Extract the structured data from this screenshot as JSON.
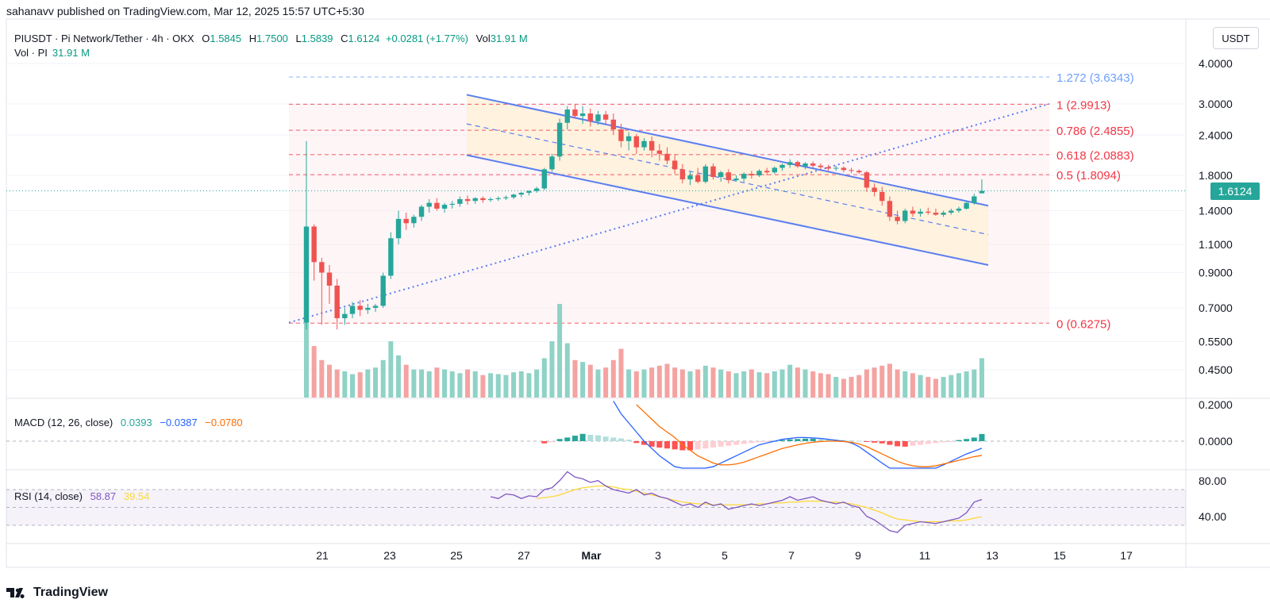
{
  "header": {
    "published": "sahanavv published on TradingView.com, Mar 12, 2025 15:57 UTC+5:30"
  },
  "legend": {
    "symbol": "PIUSDT · Pi Network/Tether · 4h · OKX",
    "o_label": "O",
    "o_value": "1.5845",
    "h_label": "H",
    "h_value": "1.7500",
    "l_label": "L",
    "l_value": "1.5839",
    "c_label": "C",
    "c_value": "1.6124",
    "change": "+0.0281 (+1.77%)",
    "vol_label": "Vol",
    "vol_value": "31.91 M",
    "vol_series_label": "Vol · PI",
    "vol_series_value": "31.91 M"
  },
  "currency_button": "USDT",
  "last_price_tag": "1.6124",
  "macd_legend": {
    "title": "MACD (12, 26, close)",
    "hist": "0.0393",
    "macd": "−0.0387",
    "signal": "−0.0780"
  },
  "rsi_legend": {
    "title": "RSI (14, close)",
    "rsi": "58.87",
    "ma": "39.54"
  },
  "footer": {
    "brand": "TradingView"
  },
  "colors": {
    "up": "#26a69a",
    "down": "#ef5350",
    "fib": "#f23645",
    "fib_ext": "#2962ff",
    "channel": "#5b7ef0",
    "macd_line": "#2962ff",
    "signal_line": "#ff6d00",
    "rsi_line": "#7e57c2",
    "rsi_ma": "#fdd835"
  },
  "chart_data": {
    "type": "candlestick",
    "y_scale": "log",
    "price_ticks": [
      "4.0000",
      "3.0000",
      "2.4000",
      "1.8000",
      "1.4000",
      "1.1000",
      "0.9000",
      "0.7000",
      "0.5500",
      "0.4500"
    ],
    "x_ticks": [
      "21",
      "23",
      "25",
      "27",
      "Mar",
      "3",
      "5",
      "7",
      "9",
      "11",
      "13",
      "15",
      "17"
    ],
    "macd_ticks": [
      "0.2000",
      "0.0000"
    ],
    "rsi_ticks": [
      "80.00",
      "40.00"
    ],
    "fib_levels": [
      {
        "label": "1.272 (3.6343)",
        "value": 3.6343,
        "extension": true
      },
      {
        "label": "1 (2.9913)",
        "value": 2.9913
      },
      {
        "label": "0.786 (2.4855)",
        "value": 2.4855
      },
      {
        "label": "0.618 (2.0883)",
        "value": 2.0883
      },
      {
        "label": "0.5 (1.8094)",
        "value": 1.8094
      },
      {
        "label": "0 (0.6275)",
        "value": 0.6275
      }
    ],
    "last_close": 1.6124,
    "candles": [
      [
        0.63,
        2.3,
        0.6,
        1.25
      ],
      [
        1.25,
        1.27,
        0.85,
        0.97
      ],
      [
        0.97,
        1.0,
        0.62,
        0.9
      ],
      [
        0.9,
        0.95,
        0.72,
        0.82
      ],
      [
        0.82,
        0.86,
        0.6,
        0.65
      ],
      [
        0.65,
        0.7,
        0.62,
        0.67
      ],
      [
        0.67,
        0.73,
        0.65,
        0.71
      ],
      [
        0.71,
        0.74,
        0.66,
        0.69
      ],
      [
        0.69,
        0.72,
        0.67,
        0.7
      ],
      [
        0.7,
        0.72,
        0.68,
        0.71
      ],
      [
        0.71,
        0.9,
        0.7,
        0.88
      ],
      [
        0.88,
        1.2,
        0.86,
        1.15
      ],
      [
        1.15,
        1.4,
        1.1,
        1.32
      ],
      [
        1.32,
        1.38,
        1.22,
        1.28
      ],
      [
        1.28,
        1.36,
        1.24,
        1.34
      ],
      [
        1.34,
        1.46,
        1.3,
        1.44
      ],
      [
        1.44,
        1.52,
        1.38,
        1.48
      ],
      [
        1.48,
        1.53,
        1.4,
        1.42
      ],
      [
        1.42,
        1.48,
        1.38,
        1.46
      ],
      [
        1.46,
        1.5,
        1.42,
        1.47
      ],
      [
        1.47,
        1.55,
        1.44,
        1.52
      ],
      [
        1.52,
        1.56,
        1.46,
        1.5
      ],
      [
        1.5,
        1.54,
        1.47,
        1.53
      ],
      [
        1.53,
        1.55,
        1.48,
        1.51
      ],
      [
        1.51,
        1.54,
        1.49,
        1.52
      ],
      [
        1.52,
        1.55,
        1.5,
        1.53
      ],
      [
        1.53,
        1.56,
        1.51,
        1.54
      ],
      [
        1.54,
        1.58,
        1.52,
        1.57
      ],
      [
        1.57,
        1.6,
        1.54,
        1.59
      ],
      [
        1.59,
        1.62,
        1.56,
        1.61
      ],
      [
        1.61,
        1.66,
        1.59,
        1.64
      ],
      [
        1.64,
        1.9,
        1.62,
        1.88
      ],
      [
        1.88,
        2.1,
        1.85,
        2.06
      ],
      [
        2.06,
        2.7,
        2.0,
        2.62
      ],
      [
        2.62,
        2.95,
        2.5,
        2.88
      ],
      [
        2.88,
        2.99,
        2.7,
        2.75
      ],
      [
        2.75,
        2.95,
        2.6,
        2.8
      ],
      [
        2.8,
        2.9,
        2.55,
        2.65
      ],
      [
        2.65,
        2.85,
        2.58,
        2.78
      ],
      [
        2.78,
        2.85,
        2.6,
        2.68
      ],
      [
        2.68,
        2.8,
        2.4,
        2.5
      ],
      [
        2.5,
        2.6,
        2.2,
        2.3
      ],
      [
        2.3,
        2.45,
        2.15,
        2.38
      ],
      [
        2.38,
        2.42,
        2.1,
        2.2
      ],
      [
        2.2,
        2.35,
        2.15,
        2.3
      ],
      [
        2.3,
        2.38,
        2.05,
        2.15
      ],
      [
        2.15,
        2.25,
        2.0,
        2.1
      ],
      [
        2.1,
        2.2,
        1.95,
        2.0
      ],
      [
        2.0,
        2.1,
        1.82,
        1.88
      ],
      [
        1.88,
        1.95,
        1.7,
        1.75
      ],
      [
        1.75,
        1.85,
        1.68,
        1.8
      ],
      [
        1.8,
        1.9,
        1.7,
        1.72
      ],
      [
        1.72,
        1.95,
        1.7,
        1.92
      ],
      [
        1.92,
        1.96,
        1.75,
        1.78
      ],
      [
        1.78,
        1.86,
        1.72,
        1.84
      ],
      [
        1.84,
        1.88,
        1.7,
        1.74
      ],
      [
        1.74,
        1.8,
        1.72,
        1.76
      ],
      [
        1.76,
        1.84,
        1.72,
        1.82
      ],
      [
        1.82,
        1.86,
        1.76,
        1.8
      ],
      [
        1.8,
        1.88,
        1.78,
        1.86
      ],
      [
        1.86,
        1.9,
        1.8,
        1.84
      ],
      [
        1.84,
        1.92,
        1.82,
        1.9
      ],
      [
        1.9,
        1.96,
        1.86,
        1.94
      ],
      [
        1.94,
        2.02,
        1.9,
        1.98
      ],
      [
        1.98,
        2.0,
        1.9,
        1.92
      ],
      [
        1.92,
        1.98,
        1.88,
        1.96
      ],
      [
        1.96,
        1.99,
        1.9,
        1.93
      ],
      [
        1.93,
        1.96,
        1.88,
        1.91
      ],
      [
        1.91,
        1.94,
        1.86,
        1.89
      ],
      [
        1.89,
        1.93,
        1.86,
        1.9
      ],
      [
        1.9,
        1.92,
        1.84,
        1.87
      ],
      [
        1.87,
        1.9,
        1.83,
        1.86
      ],
      [
        1.86,
        1.88,
        1.82,
        1.84
      ],
      [
        1.84,
        1.86,
        1.6,
        1.65
      ],
      [
        1.65,
        1.7,
        1.55,
        1.6
      ],
      [
        1.6,
        1.66,
        1.45,
        1.5
      ],
      [
        1.5,
        1.55,
        1.3,
        1.34
      ],
      [
        1.34,
        1.4,
        1.27,
        1.3
      ],
      [
        1.3,
        1.42,
        1.28,
        1.4
      ],
      [
        1.4,
        1.44,
        1.34,
        1.37
      ],
      [
        1.37,
        1.42,
        1.34,
        1.39
      ],
      [
        1.39,
        1.43,
        1.36,
        1.38
      ],
      [
        1.38,
        1.42,
        1.35,
        1.36
      ],
      [
        1.36,
        1.4,
        1.34,
        1.38
      ],
      [
        1.38,
        1.42,
        1.36,
        1.4
      ],
      [
        1.4,
        1.44,
        1.38,
        1.42
      ],
      [
        1.42,
        1.5,
        1.41,
        1.48
      ],
      [
        1.48,
        1.58,
        1.46,
        1.55
      ],
      [
        1.5845,
        1.75,
        1.5839,
        1.6124
      ]
    ],
    "volume": [
      100,
      55,
      40,
      35,
      30,
      28,
      25,
      27,
      30,
      32,
      40,
      60,
      45,
      35,
      30,
      30,
      28,
      32,
      30,
      28,
      26,
      30,
      28,
      24,
      26,
      25,
      24,
      27,
      28,
      26,
      30,
      42,
      60,
      100,
      58,
      40,
      38,
      35,
      30,
      32,
      40,
      52,
      30,
      28,
      30,
      32,
      34,
      36,
      32,
      30,
      28,
      30,
      34,
      32,
      30,
      28,
      26,
      28,
      30,
      27,
      26,
      28,
      30,
      35,
      32,
      30,
      28,
      26,
      25,
      22,
      20,
      22,
      24,
      30,
      32,
      34,
      36,
      30,
      28,
      26,
      24,
      22,
      20,
      22,
      24,
      26,
      28,
      30,
      42
    ],
    "macd_hist": [
      null,
      null,
      null,
      null,
      null,
      null,
      null,
      null,
      null,
      null,
      null,
      null,
      null,
      null,
      null,
      null,
      null,
      null,
      null,
      null,
      null,
      null,
      null,
      null,
      null,
      null,
      null,
      null,
      null,
      null,
      null,
      -0.012,
      -0.006,
      0.012,
      0.02,
      0.03,
      0.04,
      0.035,
      0.032,
      0.025,
      0.02,
      0.015,
      0.008,
      -0.01,
      -0.02,
      -0.03,
      -0.035,
      -0.04,
      -0.045,
      -0.05,
      -0.05,
      -0.045,
      -0.04,
      -0.035,
      -0.03,
      -0.025,
      -0.02,
      -0.015,
      -0.01,
      -0.006,
      -0.002,
      0.002,
      0.006,
      0.01,
      0.012,
      0.014,
      0.014,
      0.012,
      0.01,
      0.008,
      0.006,
      0.004,
      0.002,
      -0.004,
      -0.008,
      -0.012,
      -0.02,
      -0.028,
      -0.03,
      -0.025,
      -0.02,
      -0.015,
      -0.01,
      -0.006,
      -0.002,
      0.006,
      0.012,
      0.02,
      0.0393
    ],
    "macd_line": [
      null,
      null,
      null,
      null,
      null,
      null,
      null,
      null,
      null,
      null,
      null,
      null,
      null,
      null,
      null,
      null,
      null,
      null,
      null,
      null,
      null,
      null,
      null,
      null,
      null,
      null,
      null,
      null,
      null,
      null,
      null,
      null,
      null,
      null,
      null,
      null,
      null,
      null,
      null,
      null,
      0.22,
      0.15,
      0.1,
      0.05,
      0.0,
      -0.04,
      -0.08,
      -0.11,
      -0.14,
      -0.16,
      -0.17,
      -0.17,
      -0.16,
      -0.14,
      -0.12,
      -0.1,
      -0.08,
      -0.06,
      -0.04,
      -0.02,
      -0.01,
      0.0,
      0.01,
      0.015,
      0.02,
      0.02,
      0.018,
      0.015,
      0.01,
      0.005,
      0.0,
      -0.01,
      -0.03,
      -0.06,
      -0.09,
      -0.12,
      -0.15,
      -0.17,
      -0.18,
      -0.18,
      -0.17,
      -0.16,
      -0.15,
      -0.13,
      -0.11,
      -0.09,
      -0.07,
      -0.055,
      -0.0387
    ],
    "signal_line": [
      null,
      null,
      null,
      null,
      null,
      null,
      null,
      null,
      null,
      null,
      null,
      null,
      null,
      null,
      null,
      null,
      null,
      null,
      null,
      null,
      null,
      null,
      null,
      null,
      null,
      null,
      null,
      null,
      null,
      null,
      null,
      null,
      null,
      null,
      null,
      null,
      null,
      null,
      null,
      null,
      null,
      null,
      null,
      0.2,
      0.16,
      0.12,
      0.08,
      0.05,
      0.02,
      -0.02,
      -0.05,
      -0.08,
      -0.1,
      -0.12,
      -0.13,
      -0.13,
      -0.125,
      -0.115,
      -0.1,
      -0.085,
      -0.07,
      -0.055,
      -0.04,
      -0.03,
      -0.02,
      -0.012,
      -0.006,
      -0.002,
      0.0,
      0.0,
      -0.002,
      -0.006,
      -0.015,
      -0.03,
      -0.05,
      -0.07,
      -0.09,
      -0.11,
      -0.125,
      -0.135,
      -0.14,
      -0.14,
      -0.135,
      -0.125,
      -0.115,
      -0.105,
      -0.095,
      -0.085,
      -0.078
    ],
    "rsi": [
      null,
      null,
      null,
      null,
      null,
      null,
      null,
      null,
      null,
      null,
      null,
      null,
      null,
      null,
      null,
      null,
      null,
      null,
      null,
      null,
      null,
      null,
      null,
      null,
      62,
      60,
      65,
      64,
      60,
      63,
      62,
      70,
      72,
      80,
      90,
      84,
      82,
      78,
      80,
      74,
      70,
      68,
      66,
      70,
      64,
      66,
      62,
      60,
      56,
      52,
      54,
      50,
      56,
      52,
      54,
      48,
      50,
      52,
      54,
      52,
      54,
      56,
      58,
      62,
      58,
      60,
      62,
      58,
      56,
      54,
      56,
      52,
      50,
      40,
      36,
      30,
      24,
      22,
      30,
      32,
      34,
      33,
      32,
      34,
      36,
      38,
      44,
      56,
      58.87
    ],
    "rsi_ma": [
      null,
      null,
      null,
      null,
      null,
      null,
      null,
      null,
      null,
      null,
      null,
      null,
      null,
      null,
      null,
      null,
      null,
      null,
      null,
      null,
      null,
      null,
      null,
      null,
      null,
      null,
      null,
      null,
      null,
      null,
      60,
      61,
      62,
      64,
      67,
      70,
      72,
      73,
      74,
      74,
      73,
      71,
      70,
      68,
      66,
      64,
      62,
      60,
      58,
      56,
      55,
      54,
      54,
      53,
      53,
      53,
      53,
      53,
      53,
      54,
      54,
      55,
      55,
      56,
      56,
      57,
      57,
      57,
      56,
      56,
      55,
      54,
      52,
      50,
      47,
      44,
      40,
      37,
      36,
      35,
      34,
      34,
      34,
      34,
      35,
      35,
      36,
      38,
      39.54
    ]
  }
}
